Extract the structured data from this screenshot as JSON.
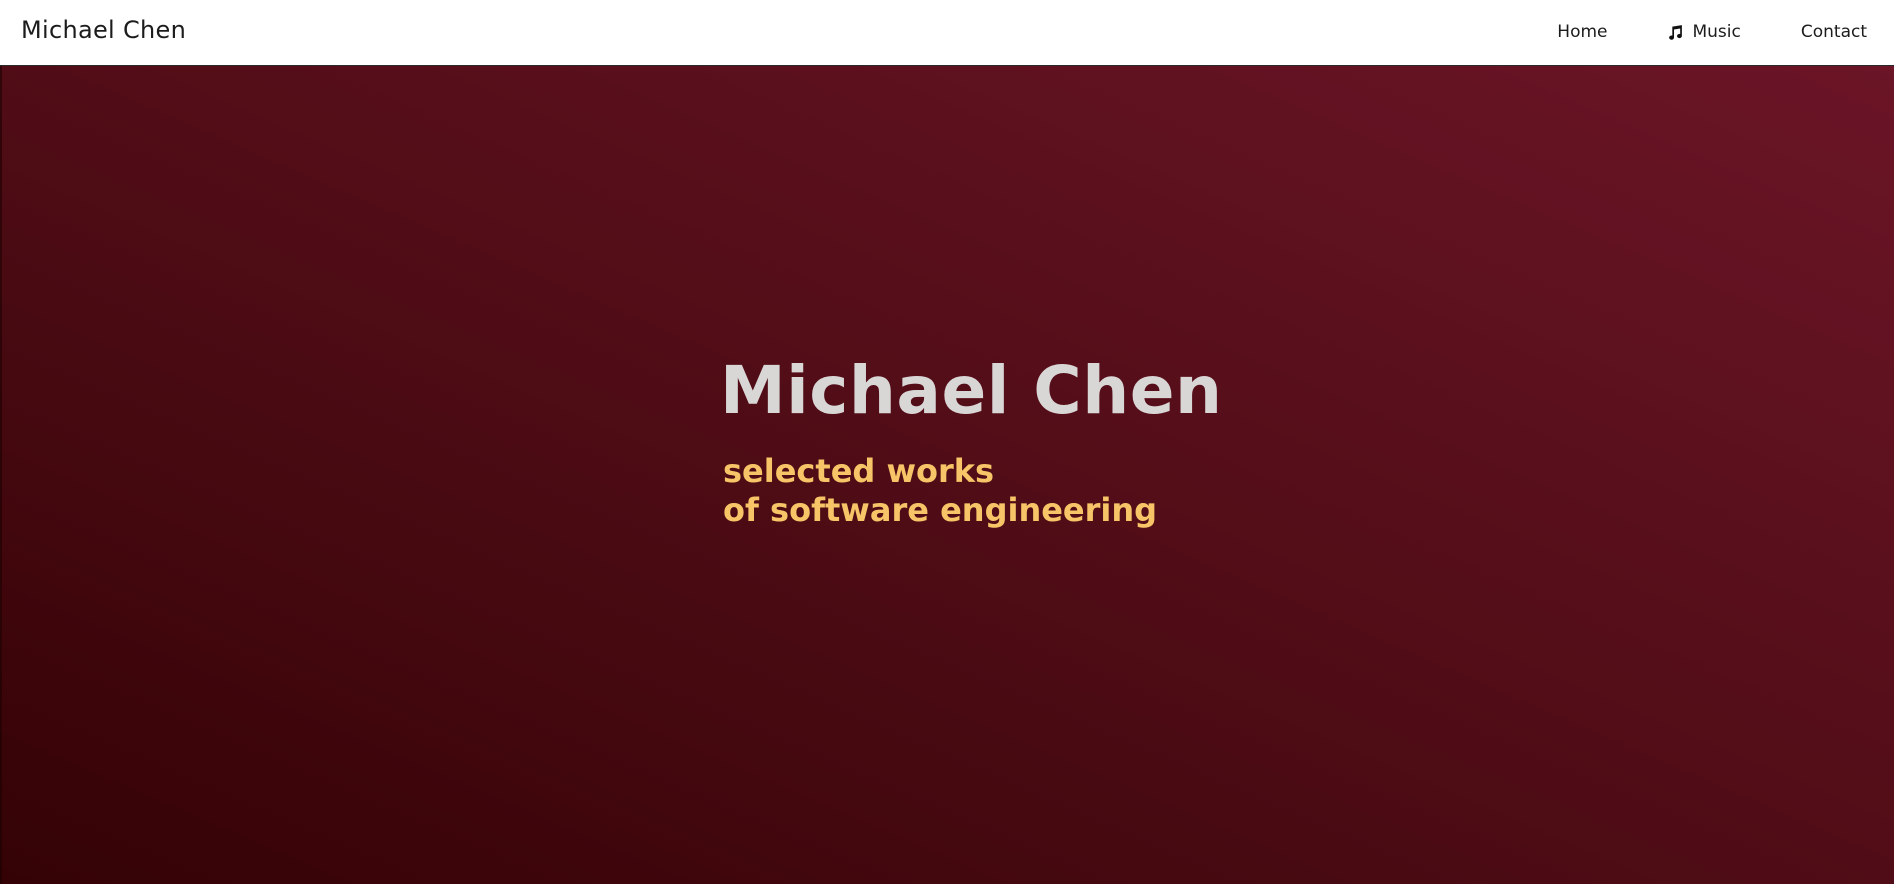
{
  "navbar": {
    "brand": "Michael Chen",
    "links": [
      {
        "label": "Home",
        "icon": null
      },
      {
        "label": "Music",
        "icon": "music-note-icon"
      },
      {
        "label": "Contact",
        "icon": null
      }
    ]
  },
  "hero": {
    "title": "Michael Chen",
    "subtitle_lines": [
      "selected works",
      "of software engineering"
    ]
  },
  "colors": {
    "navbar_bg": "#ffffff",
    "hero_gradient_start": "#340205",
    "hero_gradient_end": "#6b1527",
    "title": "#d9d6d6",
    "subtitle": "#f7c567"
  }
}
